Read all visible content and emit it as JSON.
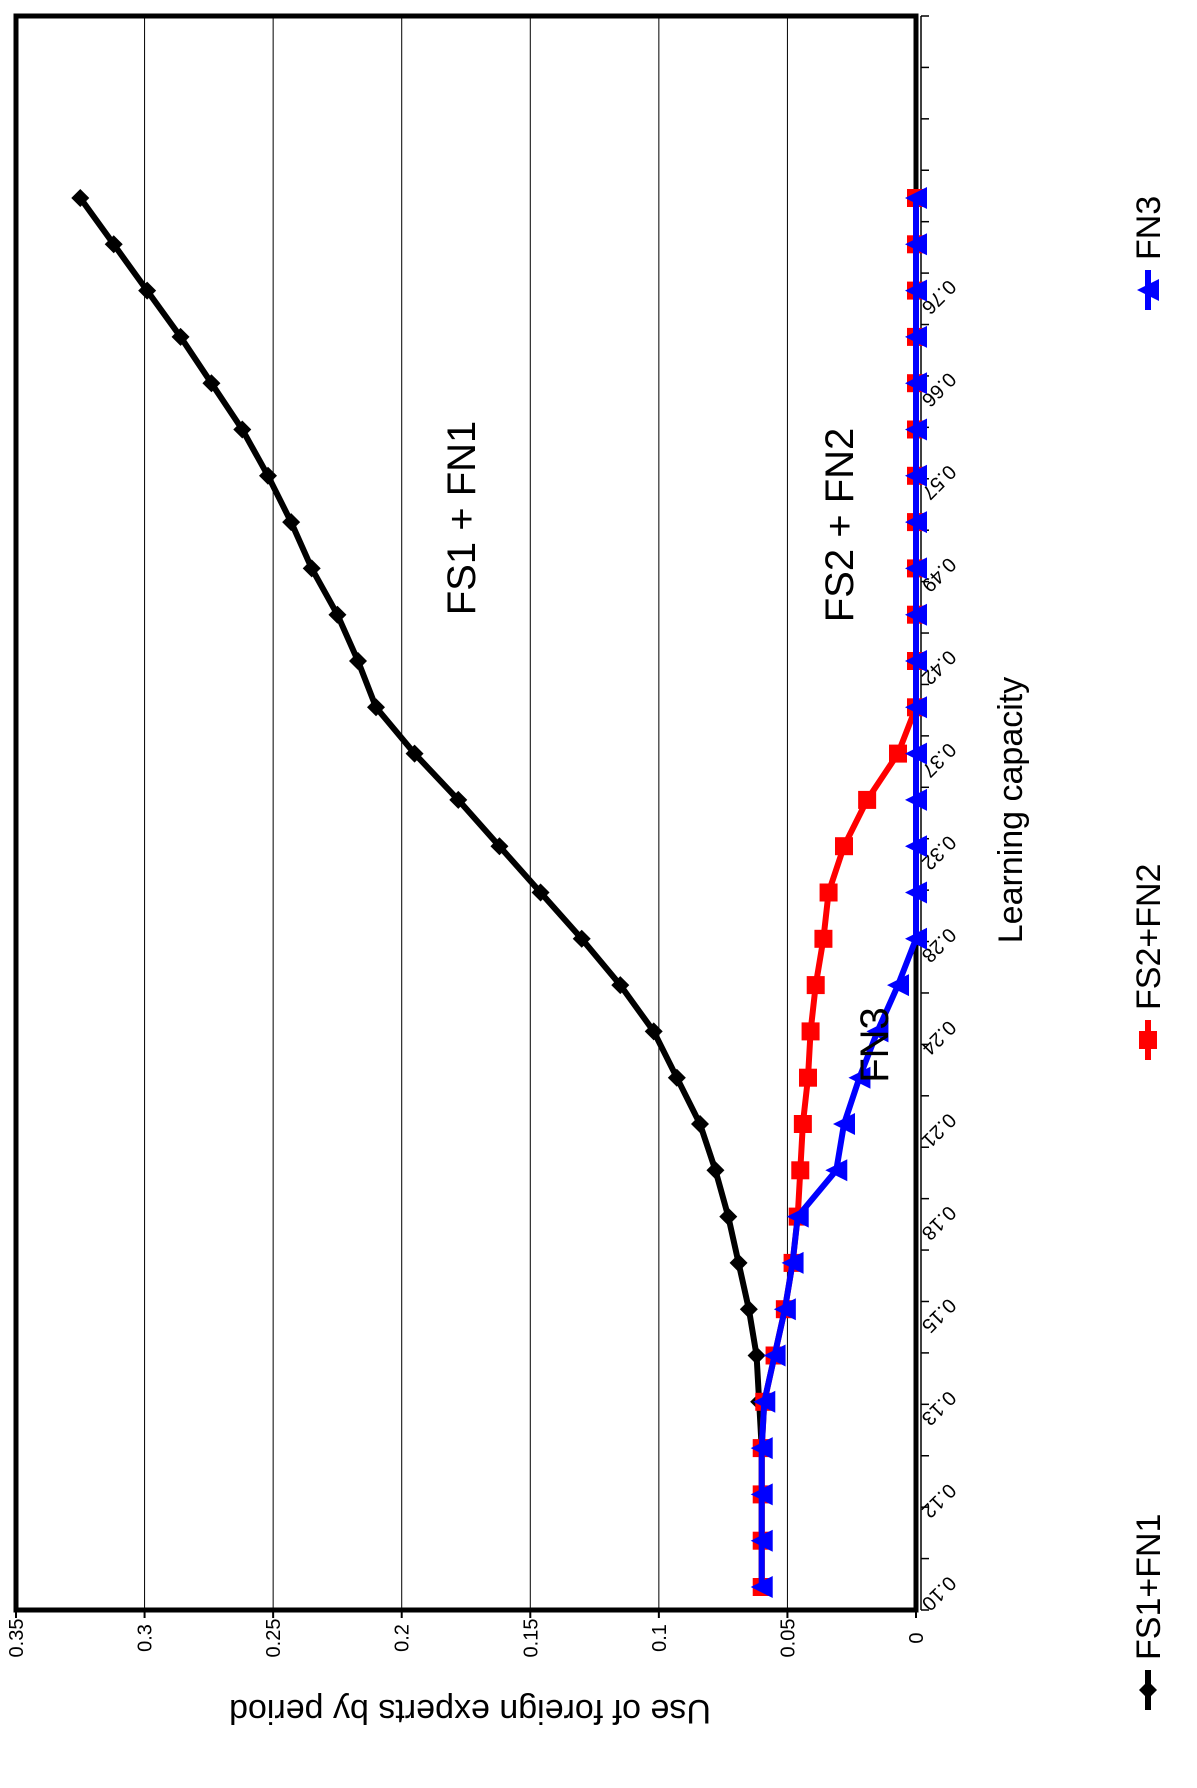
{
  "chart_data": {
    "type": "line",
    "orientation": "rotated-90-clockwise",
    "ylabel": "Use of foreign experts by period",
    "xlabel": "Learning capacity",
    "ylim": [
      0,
      0.35
    ],
    "yticks": [
      "0",
      "0.05",
      "0.1",
      "0.15",
      "0.2",
      "0.25",
      "0.3",
      "0.35"
    ],
    "xtick_labels": [
      "0.10",
      "0.12",
      "0.13",
      "0.15",
      "0.18",
      "0.21",
      "0.24",
      "0.28",
      "0.32",
      "0.37",
      "0.42",
      "0.49",
      "0.57",
      "0.66",
      "0.76"
    ],
    "grid": "horizontal-major",
    "legend_position": "bottom",
    "annotations": [
      "FS1 + FN1",
      "FS2 + FN2",
      "FN3"
    ],
    "series": [
      {
        "name": "FS1+FN1",
        "color": "#000000",
        "marker": "diamond",
        "values": [
          0.06,
          0.06,
          0.06,
          0.06,
          0.061,
          0.062,
          0.065,
          0.069,
          0.073,
          0.078,
          0.084,
          0.093,
          0.102,
          0.115,
          0.13,
          0.146,
          0.162,
          0.178,
          0.195,
          0.21,
          0.217,
          0.225,
          0.235,
          0.243,
          0.252,
          0.262,
          0.274,
          0.286,
          0.299,
          0.312,
          0.325
        ]
      },
      {
        "name": "FS2+FN2",
        "color": "#ff0000",
        "marker": "square",
        "values": [
          0.06,
          0.06,
          0.06,
          0.06,
          0.059,
          0.055,
          0.051,
          0.048,
          0.046,
          0.045,
          0.044,
          0.042,
          0.041,
          0.039,
          0.036,
          0.034,
          0.028,
          0.019,
          0.007,
          0,
          0,
          0,
          0,
          0,
          0,
          0,
          0,
          0,
          0,
          0,
          0
        ]
      },
      {
        "name": "FN3",
        "color": "#0000ff",
        "marker": "triangle",
        "values": [
          0.06,
          0.06,
          0.06,
          0.06,
          0.059,
          0.055,
          0.051,
          0.048,
          0.046,
          0.031,
          0.028,
          0.022,
          0.015,
          0.007,
          0,
          0,
          0,
          0,
          0,
          0,
          0,
          0,
          0,
          0,
          0,
          0,
          0,
          0,
          0,
          0,
          0
        ]
      }
    ]
  }
}
